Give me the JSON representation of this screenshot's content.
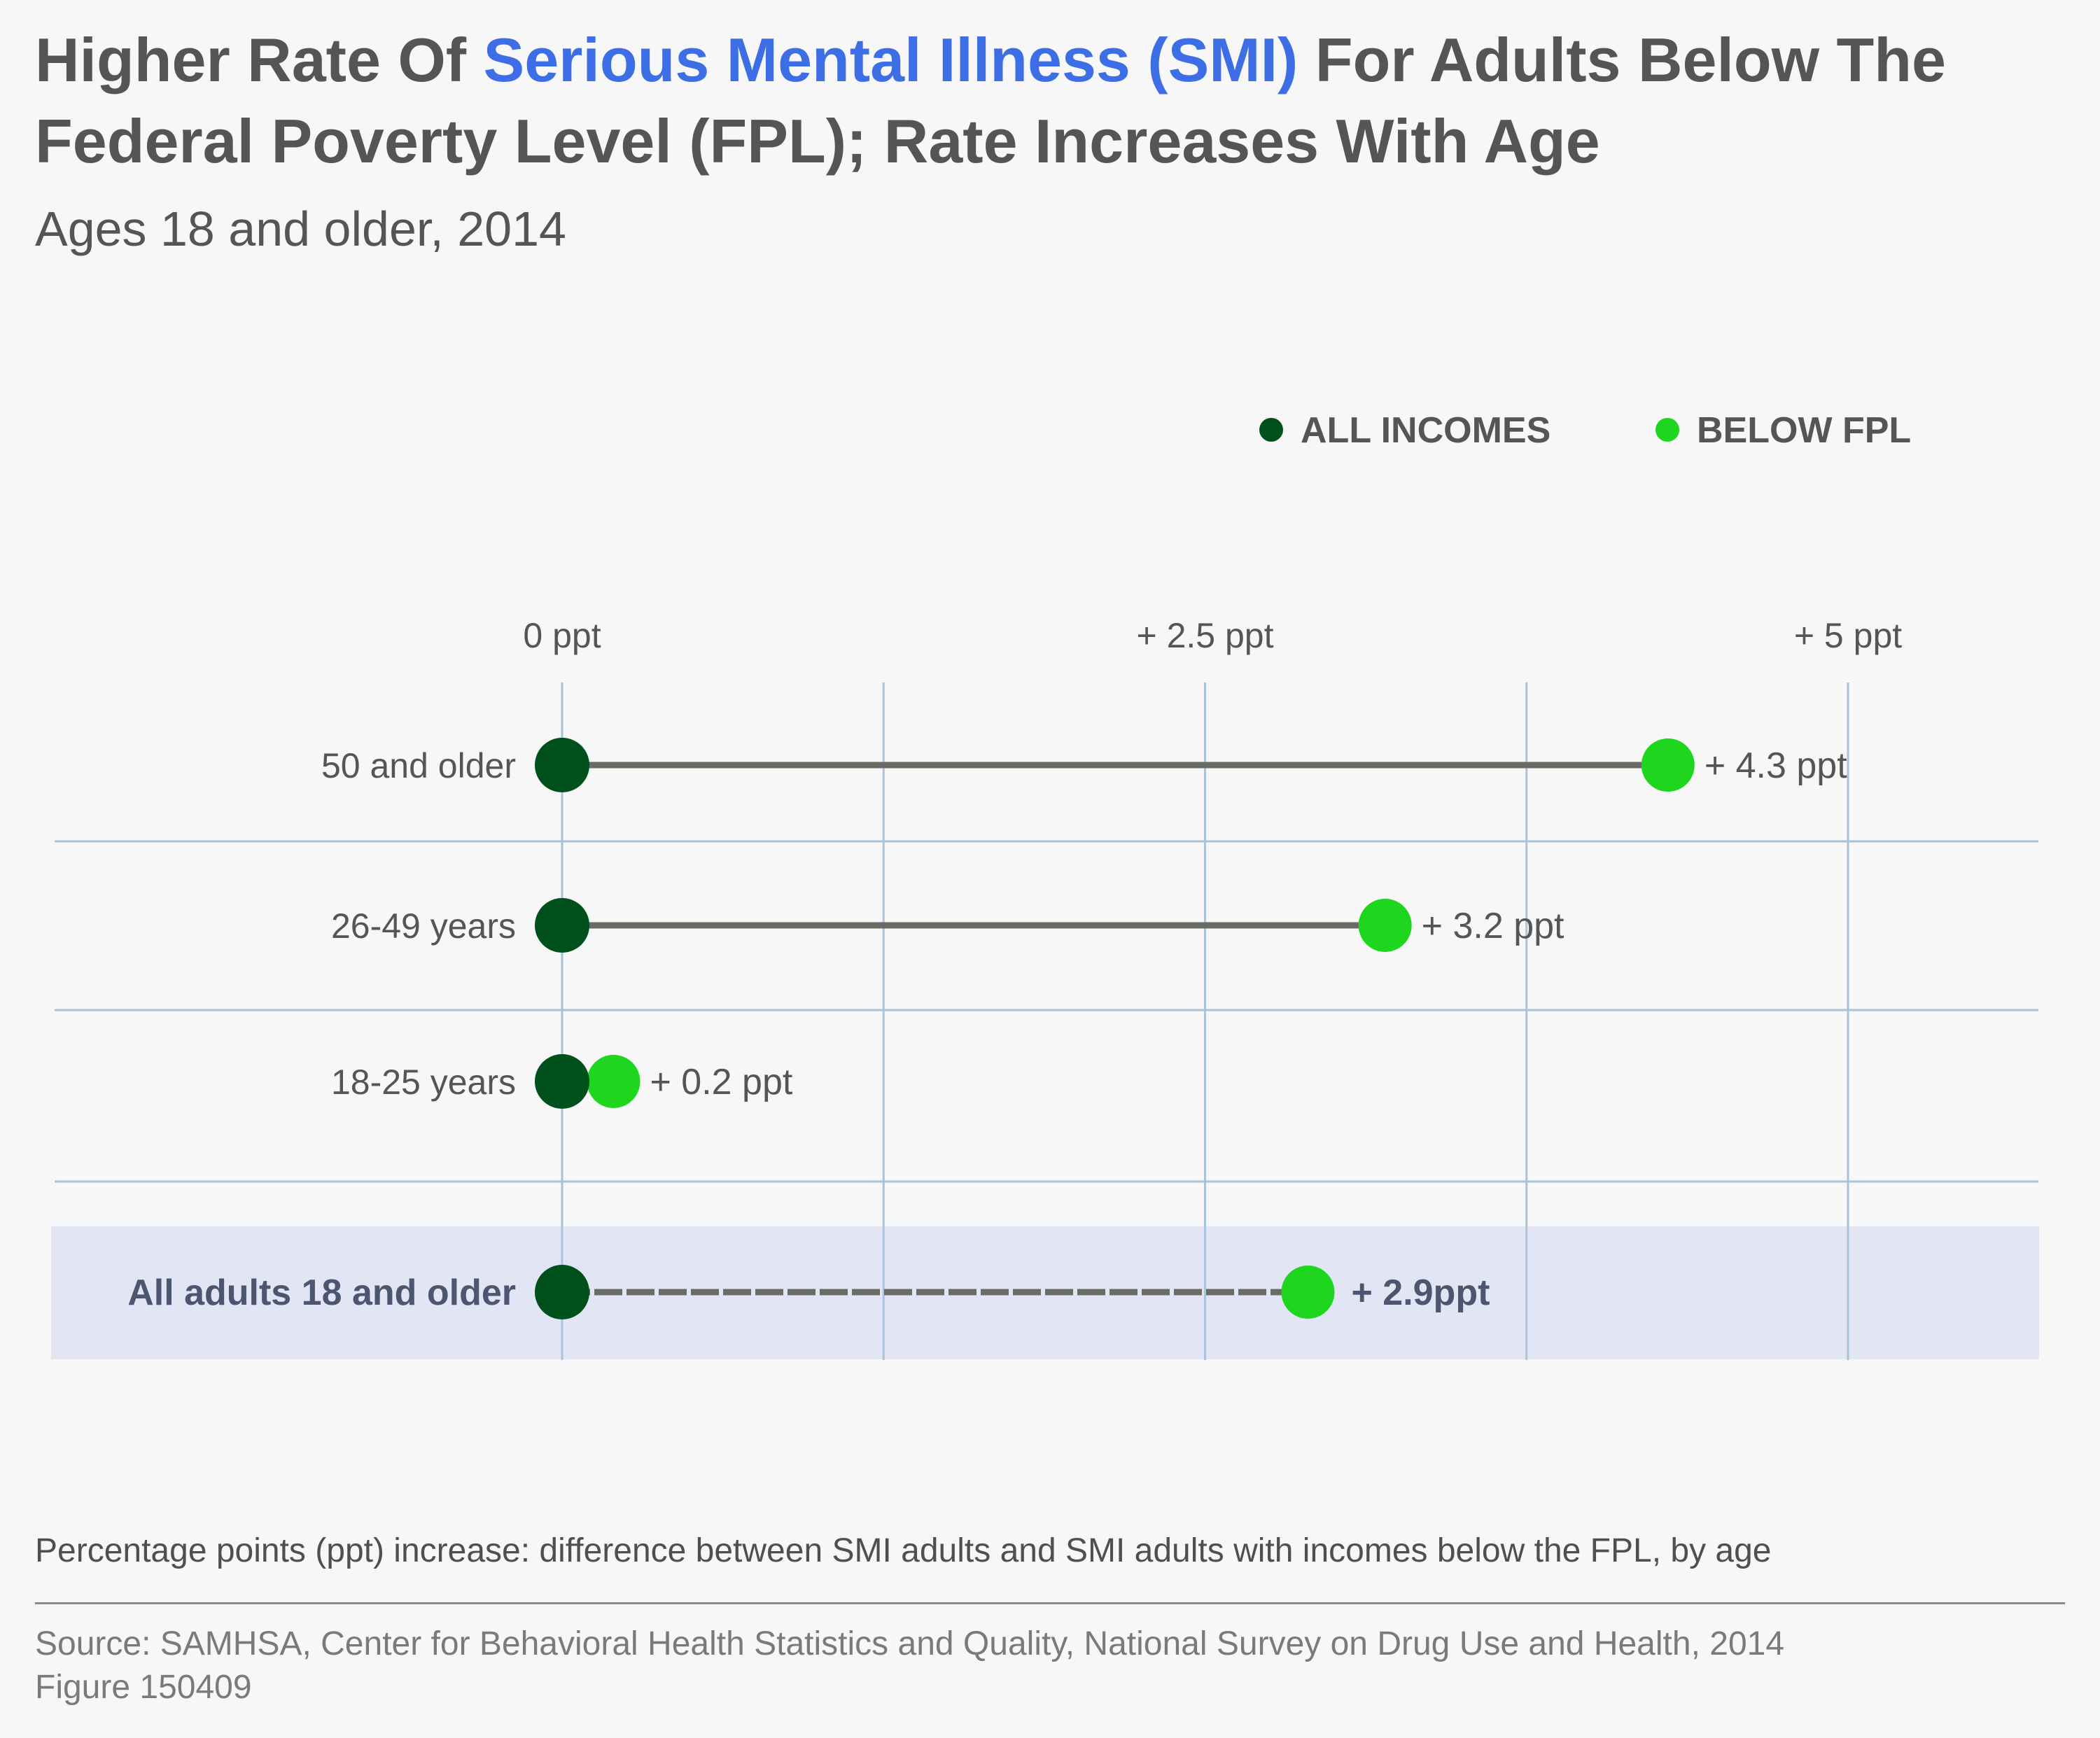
{
  "header": {
    "title_part1": "Higher Rate Of ",
    "title_highlight": "Serious Mental Illness (SMI)",
    "title_part2": " For Adults Below The Federal Poverty Level (FPL); Rate Increases With Age",
    "subtitle": "Ages 18 and older, 2014"
  },
  "chart_data": {
    "type": "dumbbell",
    "title": "Higher Rate Of Serious Mental Illness (SMI) For Adults Below The Federal Poverty Level (FPL); Rate Increases With Age",
    "subtitle": "Ages 18 and older, 2014",
    "x_ticks": [
      {
        "value": 0,
        "label": "0 ppt"
      },
      {
        "value": 2.5,
        "label": "+ 2.5 ppt"
      },
      {
        "value": 5,
        "label": "+ 5 ppt"
      }
    ],
    "xlim": [
      0,
      5
    ],
    "grid": true,
    "legend_position": "top-right",
    "series": [
      {
        "name": "ALL INCOMES",
        "color": "#00501c"
      },
      {
        "name": "BELOW FPL",
        "color": "#1ed61e"
      }
    ],
    "rows": [
      {
        "label": "50 and older",
        "start": 0,
        "end": 4.3,
        "value_label": "+ 4.3 ppt",
        "highlight": false
      },
      {
        "label": "26-49 years",
        "start": 0,
        "end": 3.2,
        "value_label": "+ 3.2 ppt",
        "highlight": false
      },
      {
        "label": "18-25 years",
        "start": 0,
        "end": 0.2,
        "value_label": "+ 0.2 ppt",
        "highlight": false
      },
      {
        "label": "All adults 18 and older",
        "start": 0,
        "end": 2.9,
        "value_label": "+ 2.9ppt",
        "highlight": true
      }
    ],
    "colors": {
      "connector": "#6b6b66",
      "grid": "#a9c3da",
      "highlight_band": "#e2e6f4",
      "highlight_text": "#4d5670"
    }
  },
  "footer": {
    "note": "Percentage points (ppt) increase: difference between SMI adults and SMI adults with incomes below the FPL, by age",
    "source": "Source: SAMHSA, Center for Behavioral Health Statistics and Quality, National Survey on Drug Use and Health, 2014",
    "figure": "Figure 150409"
  }
}
